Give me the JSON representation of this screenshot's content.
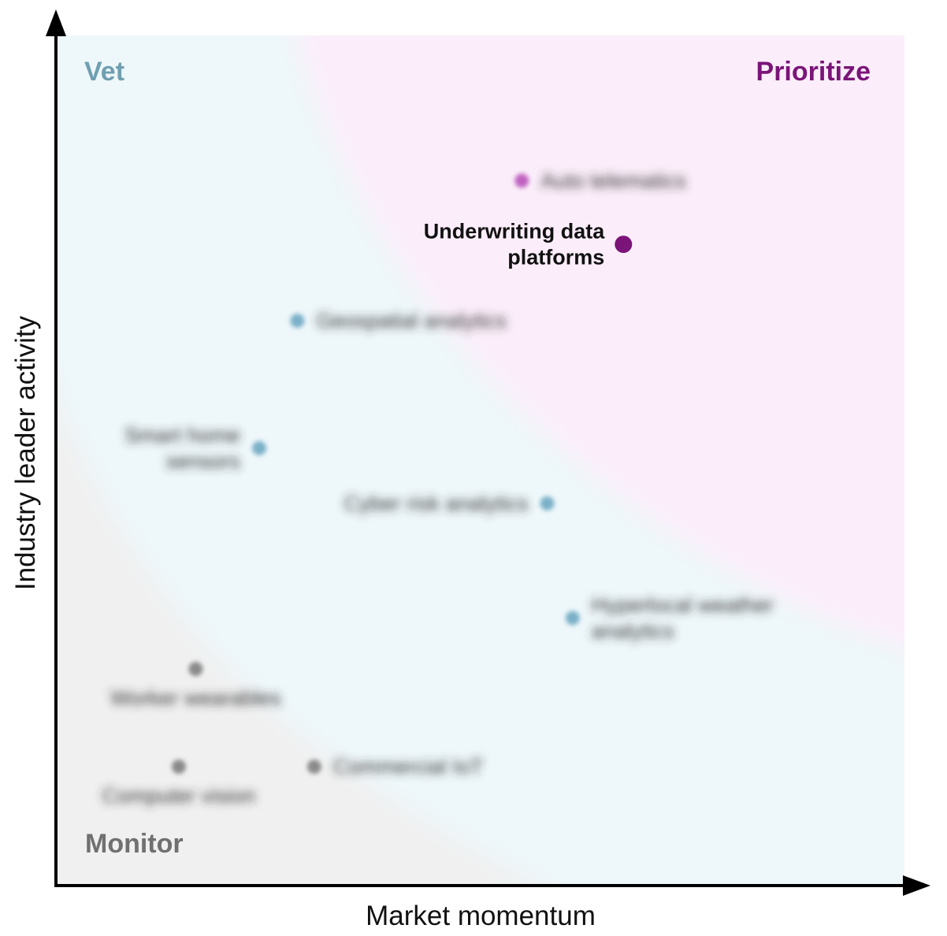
{
  "chart_data": {
    "type": "scatter",
    "xlabel": "Market momentum",
    "ylabel": "Industry leader activity",
    "xlim": [
      0,
      100
    ],
    "ylim": [
      0,
      100
    ],
    "grid": false,
    "zones": [
      {
        "name": "Vet",
        "color": "#6f9fb0",
        "fill": "#eef7fa"
      },
      {
        "name": "Prioritize",
        "color": "#7b1478",
        "fill": "#fbeefa"
      },
      {
        "name": "Monitor",
        "color": "#707070",
        "fill": "#f0f0f0"
      }
    ],
    "points": [
      {
        "label": "Auto telematics",
        "x": 55,
        "y": 83,
        "zone": "Prioritize",
        "color": "#c060c0",
        "blurred": true,
        "label_side": "right"
      },
      {
        "label": "Underwriting data platforms",
        "label_lines": [
          "Underwriting data",
          "platforms"
        ],
        "x": 67,
        "y": 75.5,
        "zone": "Prioritize",
        "color": "#7b1478",
        "blurred": false,
        "label_side": "left"
      },
      {
        "label": "Geospatial analytics",
        "x": 28.5,
        "y": 66.5,
        "zone": "Vet",
        "color": "#7ab0c8",
        "blurred": true,
        "label_side": "right"
      },
      {
        "label": "Smart home sensors",
        "label_lines": [
          "Smart home",
          "sensors"
        ],
        "x": 24,
        "y": 51.5,
        "zone": "Vet",
        "color": "#7ab0c8",
        "blurred": true,
        "label_side": "left"
      },
      {
        "label": "Cyber risk analytics",
        "x": 58,
        "y": 45,
        "zone": "Vet",
        "color": "#7ab0c8",
        "blurred": true,
        "label_side": "left"
      },
      {
        "label": "Hyperlocal weather analytics",
        "label_lines": [
          "Hyperlocal weather",
          "analytics"
        ],
        "x": 61,
        "y": 31.5,
        "zone": "Vet",
        "color": "#7ab0c8",
        "blurred": true,
        "label_side": "right"
      },
      {
        "label": "Worker wearables",
        "x": 16.5,
        "y": 25.5,
        "zone": "Monitor",
        "color": "#8a8a8a",
        "blurred": true,
        "label_side": "below"
      },
      {
        "label": "Commercial IoT",
        "x": 30.5,
        "y": 14,
        "zone": "Monitor",
        "color": "#8a8a8a",
        "blurred": true,
        "label_side": "right"
      },
      {
        "label": "Computer vision",
        "x": 14.5,
        "y": 14,
        "zone": "Monitor",
        "color": "#8a8a8a",
        "blurred": true,
        "label_side": "below"
      }
    ]
  }
}
